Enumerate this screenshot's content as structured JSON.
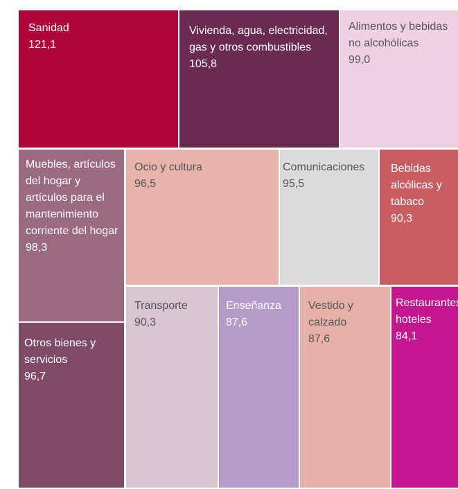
{
  "chart_data": {
    "type": "treemap",
    "categories": [
      "Sanidad",
      "Vivienda, agua, electricidad, gas y otros combustibles",
      "Alimentos y bebidas no alcohólicas",
      "Muebles, artículos del hogar y artículos para el mantenimiento corriente del hogar",
      "Otros bienes y servicios",
      "Ocio y cultura",
      "Comunicaciones",
      "Bebidas alcólicas y tabaco",
      "Transporte",
      "Enseñanza",
      "Vestido y calzado",
      "Restaurantes y hoteles"
    ],
    "values": [
      121.1,
      105.8,
      99.0,
      98.3,
      96.7,
      96.5,
      95.5,
      90.3,
      90.3,
      87.6,
      87.6,
      84.1
    ],
    "value_labels": [
      "121,1",
      "105,8",
      "99,0",
      "98,3",
      "96,7",
      "96,5",
      "95,5",
      "90,3",
      "90,3",
      "87,6",
      "87,6",
      "84,1"
    ],
    "colors": [
      "#b10639",
      "#6b2a4f",
      "#f0d1e3",
      "#9a6a7f",
      "#7e4a66",
      "#e8b3aa",
      "#dcdcdf",
      "#c85d63",
      "#d8c5d0",
      "#b49bca",
      "#e6b1a8",
      "#c3178f"
    ]
  }
}
